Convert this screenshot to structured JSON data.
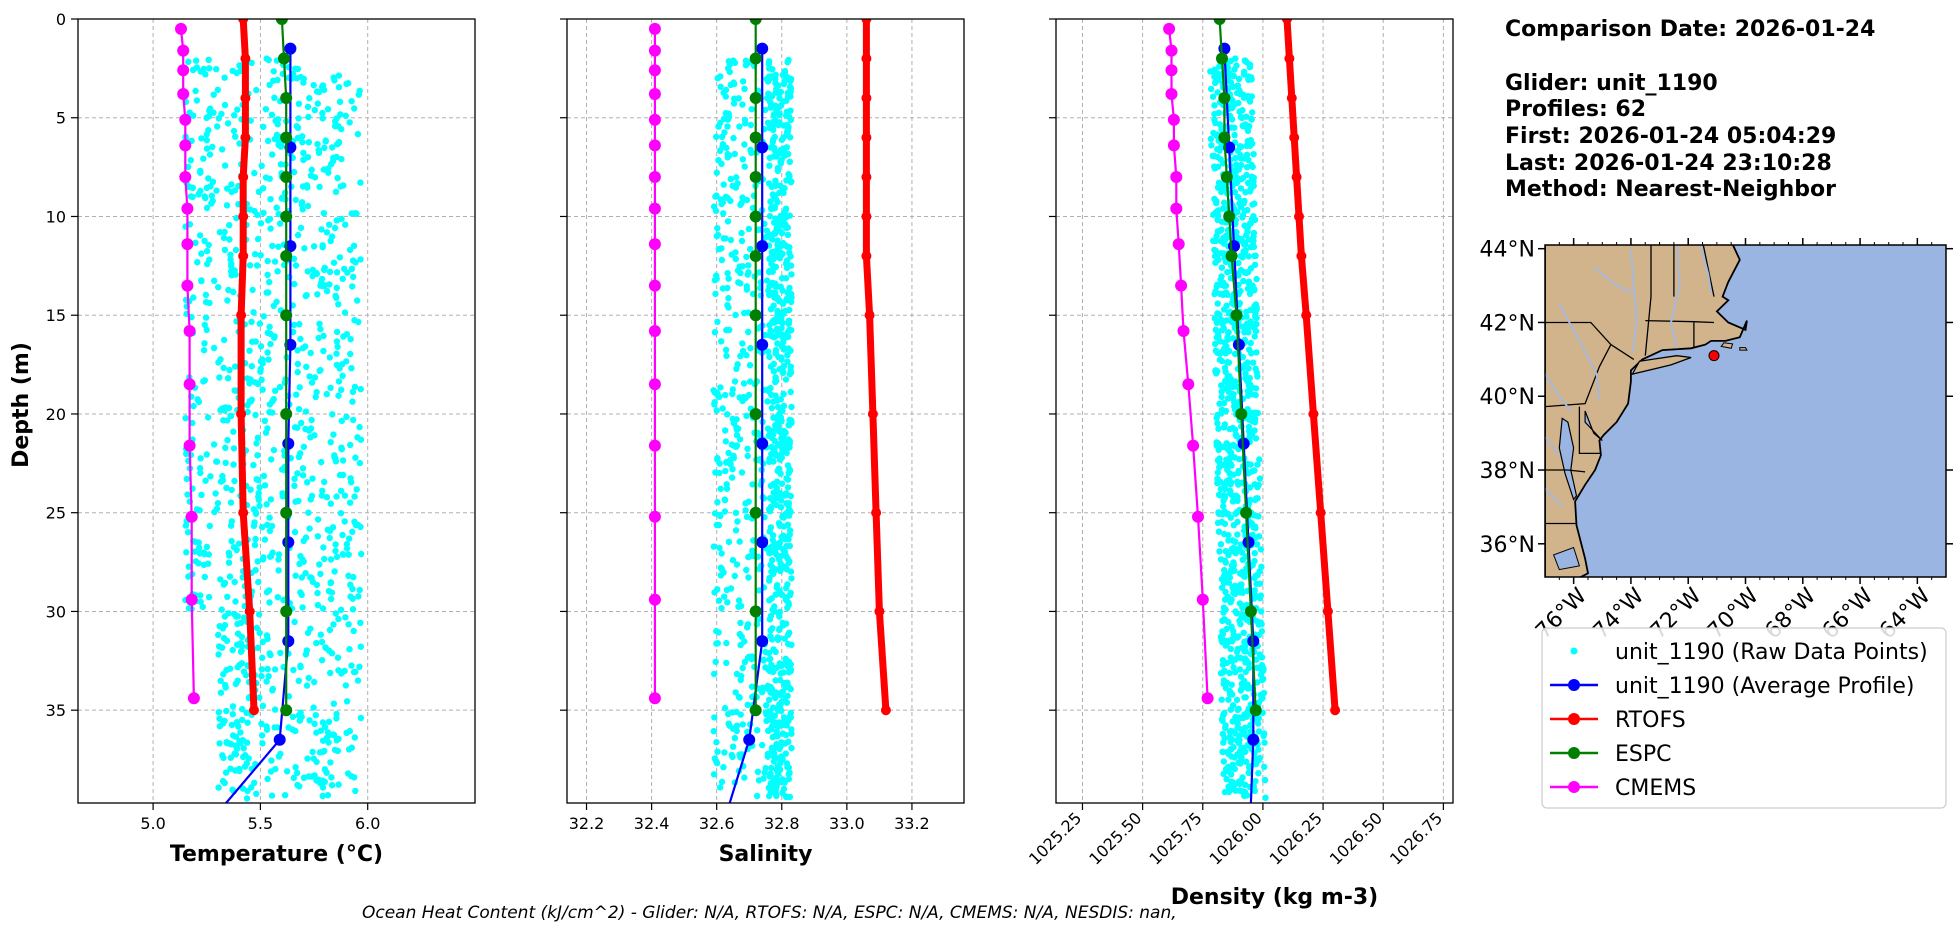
{
  "info": {
    "comparison_date": "Comparison Date: 2026-01-24",
    "glider": "Glider: unit_1190",
    "profiles": "Profiles: 62",
    "first": "First: 2026-01-24 05:04:29",
    "last": "Last: 2026-01-24 23:10:28",
    "method": "Method: Nearest-Neighbor"
  },
  "footer": "Ocean Heat Content (kJ/cm^2) - Glider: N/A,  RTOFS: N/A,  ESPC: N/A,  CMEMS: N/A,  NESDIS: nan,",
  "colors": {
    "raw": "#00ffff",
    "glider": "#0000ff",
    "rtofs": "#ff0000",
    "espc": "#008000",
    "cmems": "#ff00ff",
    "land": "#d2b48c",
    "ocean": "#9ab5e1",
    "river": "#a7b8d9",
    "grid": "#b0b0b0"
  },
  "legend": [
    {
      "key": "raw",
      "label": "unit_1190 (Raw Data Points)",
      "style": "dots"
    },
    {
      "key": "glider",
      "label": "unit_1190 (Average Profile)",
      "style": "line"
    },
    {
      "key": "rtofs",
      "label": "RTOFS",
      "style": "line"
    },
    {
      "key": "espc",
      "label": "ESPC",
      "style": "line"
    },
    {
      "key": "cmems",
      "label": "CMEMS",
      "style": "line"
    }
  ],
  "map": {
    "lat_ticks": [
      "36°N",
      "38°N",
      "40°N",
      "42°N",
      "44°N"
    ],
    "lat_values": [
      36,
      38,
      40,
      42,
      44
    ],
    "lon_ticks": [
      "76°W",
      "74°W",
      "72°W",
      "70°W",
      "68°W",
      "66°W",
      "64°W"
    ],
    "lon_values": [
      -76,
      -74,
      -72,
      -70,
      -68,
      -66,
      -64
    ],
    "extent": {
      "lon_min": -77,
      "lon_max": -63,
      "lat_min": 35.1,
      "lat_max": 44.1
    },
    "glider_position": {
      "lon": -71.1,
      "lat": 41.1
    }
  },
  "chart_data": [
    {
      "type": "line",
      "name": "temperature",
      "xlabel": "Temperature (°C)",
      "ylabel": "Depth (m)",
      "xlim": [
        4.65,
        6.5
      ],
      "ylim": [
        39.7,
        0
      ],
      "xticks": [
        5.0,
        5.5,
        6.0
      ],
      "xtick_labels": [
        "5.0",
        "5.5",
        "6.0"
      ],
      "yticks": [
        0,
        5,
        10,
        15,
        20,
        25,
        30,
        35
      ],
      "ytick_labels": [
        "0",
        "5",
        "10",
        "15",
        "20",
        "25",
        "30",
        "35"
      ],
      "raw_range": {
        "x": [
          5.15,
          5.97
        ],
        "y": [
          2,
          39.5
        ]
      },
      "series": [
        {
          "name": "unit_1190 (Average Profile)",
          "key": "glider",
          "depth": [
            1.5,
            6.5,
            11.5,
            16.5,
            21.5,
            26.5,
            31.5,
            36.5,
            39.7
          ],
          "values": [
            5.64,
            5.64,
            5.64,
            5.64,
            5.63,
            5.63,
            5.63,
            5.59,
            5.34
          ]
        },
        {
          "name": "RTOFS",
          "key": "rtofs",
          "depth": [
            0,
            2,
            4,
            6,
            8,
            10,
            12,
            15,
            20,
            25,
            30,
            35
          ],
          "values": [
            5.42,
            5.43,
            5.43,
            5.43,
            5.42,
            5.42,
            5.42,
            5.41,
            5.41,
            5.42,
            5.45,
            5.47
          ]
        },
        {
          "name": "ESPC",
          "key": "espc",
          "depth": [
            0,
            2,
            4,
            6,
            8,
            10,
            12,
            15,
            20,
            25,
            30,
            35
          ],
          "values": [
            5.6,
            5.61,
            5.62,
            5.62,
            5.62,
            5.62,
            5.62,
            5.62,
            5.62,
            5.62,
            5.62,
            5.62
          ]
        },
        {
          "name": "CMEMS",
          "key": "cmems",
          "depth": [
            0.5,
            1.6,
            2.6,
            3.8,
            5.1,
            6.4,
            8.0,
            9.6,
            11.4,
            13.5,
            15.8,
            18.5,
            21.6,
            25.2,
            29.4,
            34.4
          ],
          "values": [
            5.13,
            5.14,
            5.14,
            5.14,
            5.15,
            5.15,
            5.15,
            5.16,
            5.16,
            5.16,
            5.17,
            5.17,
            5.17,
            5.18,
            5.18,
            5.19
          ]
        }
      ]
    },
    {
      "type": "line",
      "name": "salinity",
      "xlabel": "Salinity",
      "xlim": [
        32.14,
        33.36
      ],
      "ylim": [
        39.7,
        0
      ],
      "xticks": [
        32.2,
        32.4,
        32.6,
        32.8,
        33.0,
        33.2
      ],
      "xtick_labels": [
        "32.2",
        "32.4",
        "32.6",
        "32.8",
        "33.0",
        "33.2"
      ],
      "yticks": [
        0,
        5,
        10,
        15,
        20,
        25,
        30,
        35
      ],
      "raw_range": {
        "x": [
          32.59,
          32.83
        ],
        "y": [
          2,
          39.5
        ]
      },
      "series": [
        {
          "name": "unit_1190 (Average Profile)",
          "key": "glider",
          "depth": [
            1.5,
            6.5,
            11.5,
            16.5,
            21.5,
            26.5,
            31.5,
            36.5,
            39.7
          ],
          "values": [
            32.74,
            32.74,
            32.74,
            32.74,
            32.74,
            32.74,
            32.74,
            32.7,
            32.64
          ]
        },
        {
          "name": "RTOFS",
          "key": "rtofs",
          "depth": [
            0,
            2,
            4,
            6,
            8,
            10,
            12,
            15,
            20,
            25,
            30,
            35
          ],
          "values": [
            33.06,
            33.06,
            33.06,
            33.06,
            33.06,
            33.06,
            33.06,
            33.07,
            33.08,
            33.09,
            33.1,
            33.12
          ]
        },
        {
          "name": "ESPC",
          "key": "espc",
          "depth": [
            0,
            2,
            4,
            6,
            8,
            10,
            12,
            15,
            20,
            25,
            30,
            35
          ],
          "values": [
            32.72,
            32.72,
            32.72,
            32.72,
            32.72,
            32.72,
            32.72,
            32.72,
            32.72,
            32.72,
            32.72,
            32.72
          ]
        },
        {
          "name": "CMEMS",
          "key": "cmems",
          "depth": [
            0.5,
            1.6,
            2.6,
            3.8,
            5.1,
            6.4,
            8.0,
            9.6,
            11.4,
            13.5,
            15.8,
            18.5,
            21.6,
            25.2,
            29.4,
            34.4
          ],
          "values": [
            32.41,
            32.41,
            32.41,
            32.41,
            32.41,
            32.41,
            32.41,
            32.41,
            32.41,
            32.41,
            32.41,
            32.41,
            32.41,
            32.41,
            32.41,
            32.41
          ]
        }
      ]
    },
    {
      "type": "line",
      "name": "density",
      "xlabel": "Density (kg m-3)",
      "xlim": [
        1025.14,
        1026.79
      ],
      "ylim": [
        39.7,
        0
      ],
      "xticks": [
        1025.25,
        1025.5,
        1025.75,
        1026.0,
        1026.25,
        1026.5,
        1026.75
      ],
      "xtick_labels": [
        "1025.25",
        "1025.50",
        "1025.75",
        "1026.00",
        "1026.25",
        "1026.50",
        "1026.75"
      ],
      "yticks": [
        0,
        5,
        10,
        15,
        20,
        25,
        30,
        35
      ],
      "raw_range": {
        "x": [
          1025.78,
          1026.02
        ],
        "y": [
          2,
          39.5
        ]
      },
      "series": [
        {
          "name": "unit_1190 (Average Profile)",
          "key": "glider",
          "depth": [
            1.5,
            6.5,
            11.5,
            16.5,
            21.5,
            26.5,
            31.5,
            36.5,
            39.7
          ],
          "values": [
            1025.84,
            1025.86,
            1025.88,
            1025.9,
            1025.92,
            1025.94,
            1025.96,
            1025.96,
            1025.95
          ]
        },
        {
          "name": "RTOFS",
          "key": "rtofs",
          "depth": [
            0,
            2,
            4,
            6,
            8,
            10,
            12,
            15,
            20,
            25,
            30,
            35
          ],
          "values": [
            1026.1,
            1026.11,
            1026.12,
            1026.13,
            1026.14,
            1026.15,
            1026.16,
            1026.18,
            1026.21,
            1026.24,
            1026.27,
            1026.3
          ]
        },
        {
          "name": "ESPC",
          "key": "espc",
          "depth": [
            0,
            2,
            4,
            6,
            8,
            10,
            12,
            15,
            20,
            25,
            30,
            35
          ],
          "values": [
            1025.82,
            1025.83,
            1025.84,
            1025.84,
            1025.85,
            1025.86,
            1025.87,
            1025.89,
            1025.91,
            1025.93,
            1025.95,
            1025.97
          ]
        },
        {
          "name": "CMEMS",
          "key": "cmems",
          "depth": [
            0.5,
            1.6,
            2.6,
            3.8,
            5.1,
            6.4,
            8.0,
            9.6,
            11.4,
            13.5,
            15.8,
            18.5,
            21.6,
            25.2,
            29.4,
            34.4
          ],
          "values": [
            1025.61,
            1025.62,
            1025.62,
            1025.62,
            1025.63,
            1025.63,
            1025.64,
            1025.64,
            1025.65,
            1025.66,
            1025.67,
            1025.69,
            1025.71,
            1025.73,
            1025.75,
            1025.77
          ]
        }
      ]
    }
  ]
}
